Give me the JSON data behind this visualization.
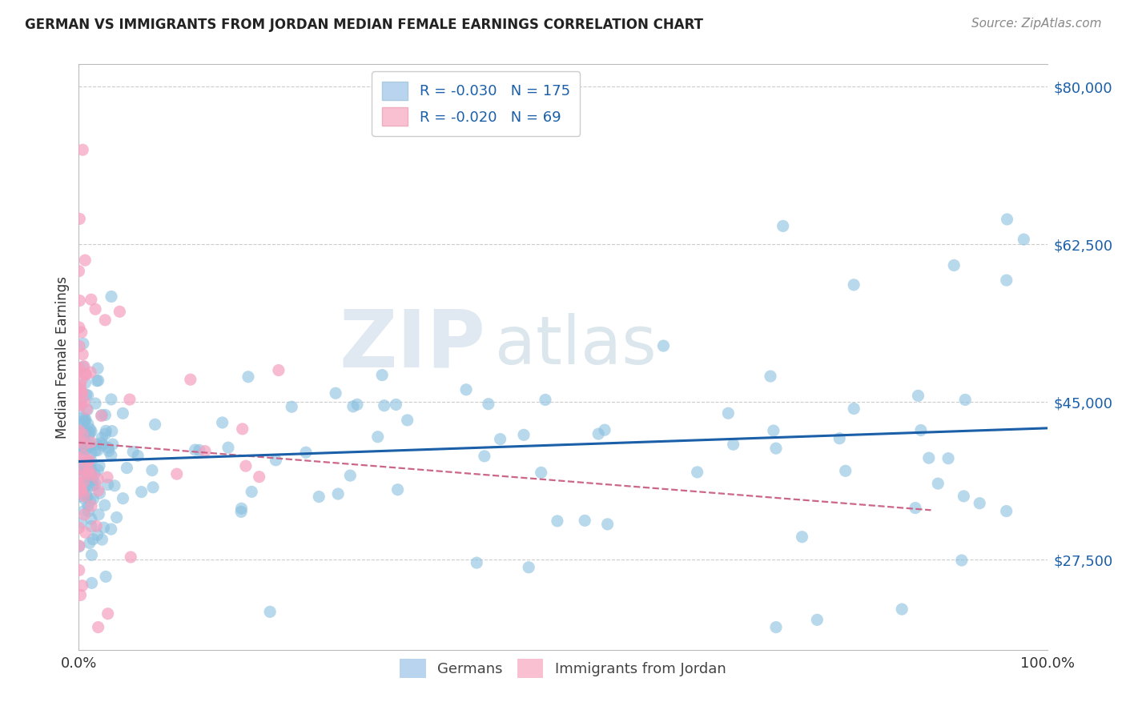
{
  "title": "GERMAN VS IMMIGRANTS FROM JORDAN MEDIAN FEMALE EARNINGS CORRELATION CHART",
  "source": "Source: ZipAtlas.com",
  "ylabel": "Median Female Earnings",
  "xlim": [
    0,
    1.0
  ],
  "ylim": [
    17500,
    82500
  ],
  "yticks": [
    27500,
    45000,
    62500,
    80000
  ],
  "ytick_labels": [
    "$27,500",
    "$45,000",
    "$62,500",
    "$80,000"
  ],
  "xtick_labels": [
    "0.0%",
    "100.0%"
  ],
  "legend_labels": [
    "Germans",
    "Immigrants from Jordan"
  ],
  "R_german": -0.03,
  "N_german": 175,
  "R_jordan": -0.02,
  "N_jordan": 69,
  "german_color": "#89bfdf",
  "jordan_color": "#f4a0bf",
  "german_line_color": "#1a5fa8",
  "jordan_line_color": "#d47090",
  "background_color": "#ffffff",
  "watermark_zip": "ZIP",
  "watermark_atlas": "atlas",
  "title_fontsize": 12,
  "source_fontsize": 11,
  "tick_fontsize": 13,
  "ylabel_fontsize": 12
}
